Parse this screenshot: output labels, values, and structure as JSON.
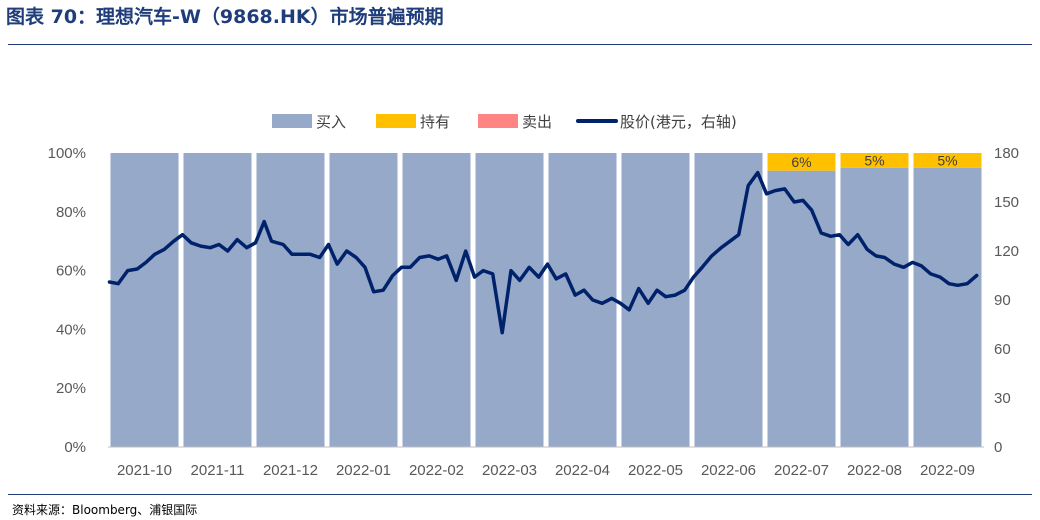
{
  "figure": {
    "title": "图表 70：理想汽车-W（9868.HK）市场普遍预期",
    "source": "资料来源：Bloomberg、浦银国际"
  },
  "chart_data": {
    "type": "bar",
    "categories": [
      "2021-10",
      "2021-11",
      "2021-12",
      "2022-01",
      "2022-02",
      "2022-03",
      "2022-04",
      "2022-05",
      "2022-06",
      "2022-07",
      "2022-08",
      "2022-09"
    ],
    "stacked_percent": true,
    "series": [
      {
        "name": "买入",
        "type": "bar",
        "axis": "left",
        "color": "#97a9c9",
        "values": [
          100,
          100,
          100,
          100,
          100,
          100,
          100,
          100,
          100,
          94,
          95,
          95
        ]
      },
      {
        "name": "持有",
        "type": "bar",
        "axis": "left",
        "color": "#ffc000",
        "values": [
          0,
          0,
          0,
          0,
          0,
          0,
          0,
          0,
          0,
          6,
          5,
          5
        ],
        "data_labels": [
          "",
          "",
          "",
          "",
          "",
          "",
          "",
          "",
          "",
          "6%",
          "5%",
          "5%"
        ]
      },
      {
        "name": "卖出",
        "type": "bar",
        "axis": "left",
        "color": "#ff8585",
        "values": [
          0,
          0,
          0,
          0,
          0,
          0,
          0,
          0,
          0,
          0,
          0,
          0
        ]
      },
      {
        "name": "股价(港元，右轴)",
        "type": "line",
        "axis": "right",
        "color": "#00226b",
        "x": [
          0.0,
          0.12,
          0.25,
          0.38,
          0.5,
          0.62,
          0.75,
          0.88,
          1.0,
          1.12,
          1.25,
          1.38,
          1.5,
          1.62,
          1.75,
          1.88,
          2.0,
          2.12,
          2.22,
          2.38,
          2.5,
          2.62,
          2.75,
          2.88,
          3.0,
          3.12,
          3.25,
          3.38,
          3.5,
          3.62,
          3.75,
          3.88,
          4.0,
          4.12,
          4.25,
          4.38,
          4.5,
          4.62,
          4.75,
          4.88,
          5.0,
          5.12,
          5.25,
          5.38,
          5.5,
          5.62,
          5.75,
          5.88,
          6.0,
          6.12,
          6.25,
          6.38,
          6.5,
          6.62,
          6.75,
          6.88,
          7.0,
          7.12,
          7.25,
          7.38,
          7.5,
          7.62,
          7.75,
          7.88,
          8.0,
          8.12,
          8.25,
          8.38,
          8.5,
          8.62,
          8.75,
          8.88,
          9.0,
          9.12,
          9.25,
          9.38,
          9.5,
          9.62,
          9.75,
          9.88,
          10.0,
          10.12,
          10.25,
          10.38,
          10.5,
          10.62,
          10.75,
          10.88,
          11.0,
          11.12,
          11.25,
          11.38,
          11.5,
          11.62,
          11.75,
          11.88
        ],
        "values": [
          101,
          100,
          108,
          109,
          113,
          118,
          121,
          126,
          130,
          125,
          123,
          122,
          124,
          120,
          127,
          122,
          125,
          138,
          126,
          124,
          118,
          118,
          118,
          116,
          124,
          112,
          120,
          116,
          110,
          95,
          96,
          105,
          110,
          110,
          116,
          117,
          115,
          117,
          102,
          120,
          104,
          108,
          106,
          70,
          108,
          102,
          110,
          104,
          112,
          103,
          106,
          93,
          96,
          90,
          88,
          91,
          88,
          84,
          97,
          88,
          96,
          92,
          93,
          96,
          104,
          110,
          117,
          122,
          126,
          130,
          160,
          168,
          155,
          157,
          158,
          150,
          151,
          145,
          131,
          129,
          130,
          124,
          130,
          121,
          117,
          116,
          112,
          110,
          113,
          111,
          106,
          104,
          100,
          99,
          100,
          105
        ]
      }
    ],
    "y_left": {
      "ticks": [
        "0%",
        "20%",
        "40%",
        "60%",
        "80%",
        "100%"
      ],
      "range": [
        0,
        100
      ]
    },
    "y_right": {
      "ticks": [
        "0",
        "30",
        "60",
        "90",
        "120",
        "150",
        "180"
      ],
      "range": [
        0,
        180
      ]
    },
    "legend_position": "top"
  }
}
